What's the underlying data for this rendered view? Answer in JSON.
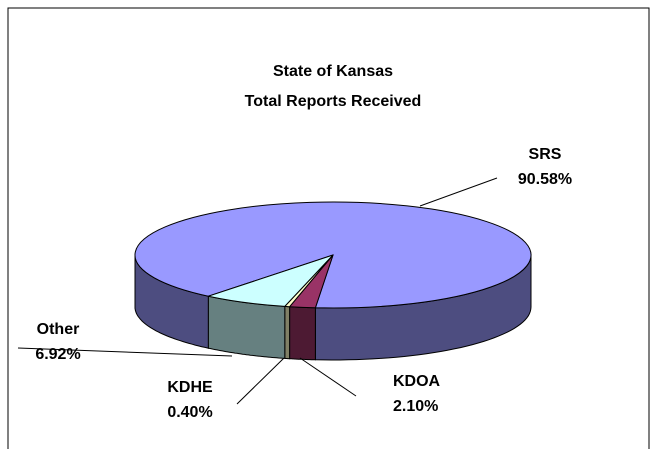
{
  "chart_data": {
    "type": "pie3d",
    "title": "State of Kansas",
    "subtitle": "Total Reports Received",
    "categories": [
      "SRS",
      "KDOA",
      "KDHE",
      "Other"
    ],
    "values": [
      90.58,
      2.1,
      0.4,
      6.92
    ],
    "value_labels": [
      "90.58%",
      "2.10%",
      "0.40%",
      "6.92%"
    ],
    "colors": [
      "#9999ff",
      "#993366",
      "#ffffcc",
      "#ccffff"
    ]
  }
}
